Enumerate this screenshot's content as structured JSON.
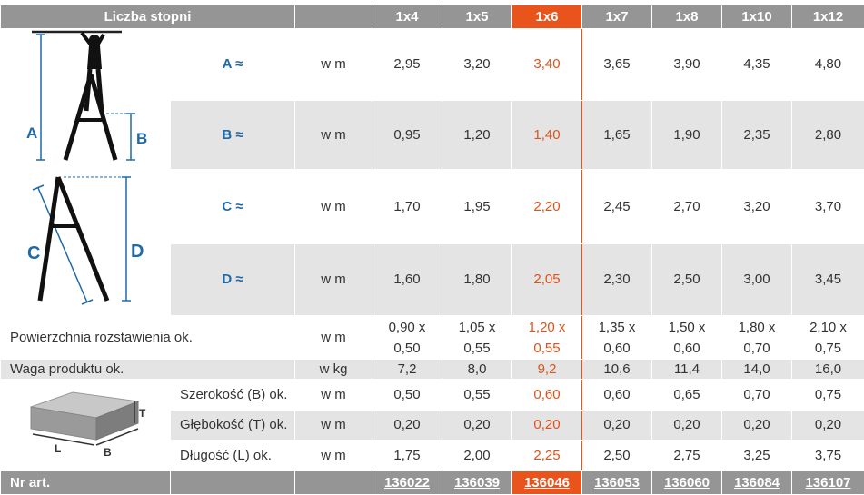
{
  "header": {
    "label": "Liczba stopni",
    "columns": [
      "1x4",
      "1x5",
      "1x6",
      "1x7",
      "1x8",
      "1x10",
      "1x12"
    ],
    "highlight_index": 2
  },
  "dimension_rows": [
    {
      "label": "A ≈",
      "unit": "w m",
      "values": [
        "2,95",
        "3,20",
        "3,40",
        "3,65",
        "3,90",
        "4,35",
        "4,80"
      ]
    },
    {
      "label": "B ≈",
      "unit": "w m",
      "values": [
        "0,95",
        "1,20",
        "1,40",
        "1,65",
        "1,90",
        "2,35",
        "2,80"
      ]
    },
    {
      "label": "C ≈",
      "unit": "w m",
      "values": [
        "1,70",
        "1,95",
        "2,20",
        "2,45",
        "2,70",
        "3,20",
        "3,70"
      ]
    },
    {
      "label": "D ≈",
      "unit": "w m",
      "values": [
        "1,60",
        "1,80",
        "2,05",
        "2,30",
        "2,50",
        "3,00",
        "3,45"
      ]
    }
  ],
  "footprint": {
    "label": "Powierzchnia rozstawienia ok.",
    "unit": "w m",
    "values_top": [
      "0,90 x",
      "1,05 x",
      "1,20 x",
      "1,35 x",
      "1,50 x",
      "1,80 x",
      "2,10 x"
    ],
    "values_bottom": [
      "0,50",
      "0,55",
      "0,55",
      "0,60",
      "0,60",
      "0,70",
      "0,75"
    ]
  },
  "weight": {
    "label": "Waga produktu ok.",
    "unit": "w kg",
    "values": [
      "7,2",
      "8,0",
      "9,2",
      "10,6",
      "11,4",
      "14,0",
      "16,0"
    ]
  },
  "package_rows": [
    {
      "label": "Szerokość (B) ok.",
      "unit": "w m",
      "values": [
        "0,50",
        "0,55",
        "0,60",
        "0,60",
        "0,65",
        "0,70",
        "0,75"
      ]
    },
    {
      "label": "Głębokość (T) ok.",
      "unit": "w m",
      "values": [
        "0,20",
        "0,20",
        "0,20",
        "0,20",
        "0,20",
        "0,20",
        "0,20"
      ]
    },
    {
      "label": "Długość (L) ok.",
      "unit": "w m",
      "values": [
        "1,75",
        "2,00",
        "2,25",
        "2,50",
        "2,75",
        "3,25",
        "3,75"
      ]
    }
  ],
  "article": {
    "label": "Nr art.",
    "values": [
      "136022",
      "136039",
      "136046",
      "136053",
      "136060",
      "136084",
      "136107"
    ]
  },
  "diagram_letters": {
    "a": "A",
    "b": "B",
    "c": "C",
    "d": "D",
    "t": "T",
    "l": "L",
    "w": "B"
  },
  "colors": {
    "header_grey": "#959595",
    "accent_orange": "#e9531c",
    "dim_blue": "#1e6aa8",
    "row_grey": "#e4e4e4"
  }
}
